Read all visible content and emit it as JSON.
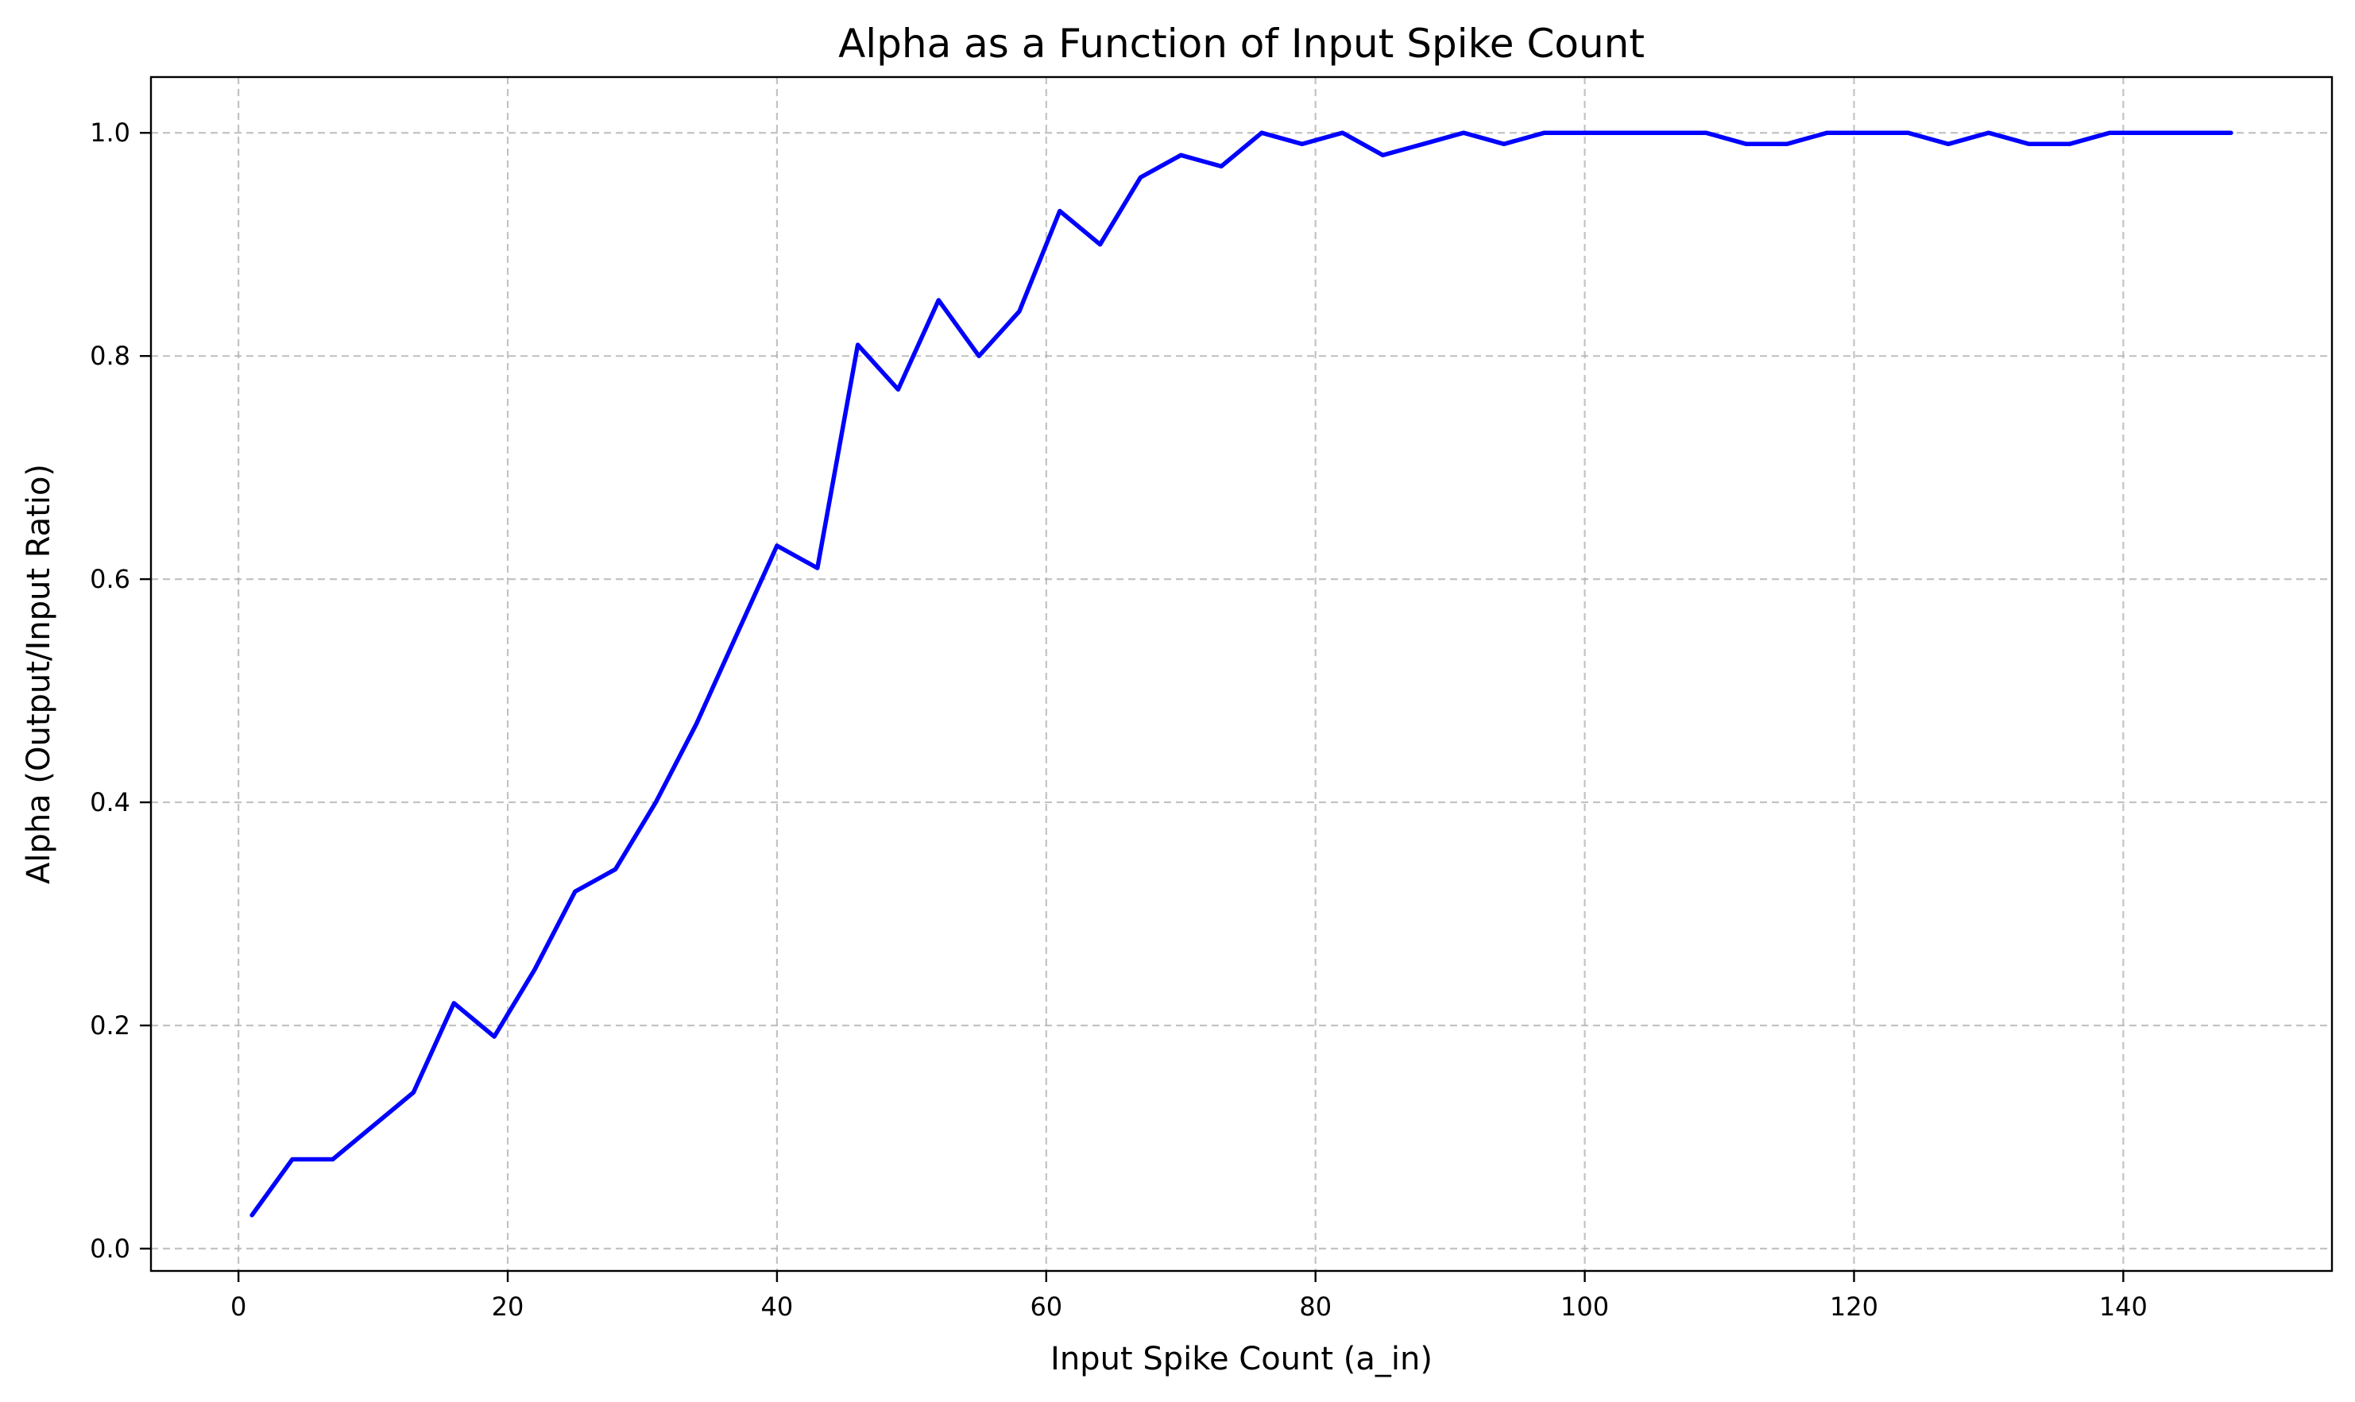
{
  "chart_data": {
    "type": "line",
    "title": "Alpha as a Function of Input Spike Count",
    "xlabel": "Input Spike Count (a_in)",
    "ylabel": "Alpha (Output/Input Ratio)",
    "xlim": [
      -6.5,
      155.5
    ],
    "ylim": [
      -0.02,
      1.05
    ],
    "xticks": [
      0,
      20,
      40,
      60,
      80,
      100,
      120,
      140
    ],
    "yticks": [
      0.0,
      0.2,
      0.4,
      0.6,
      0.8,
      1.0
    ],
    "xtick_labels": [
      "0",
      "20",
      "40",
      "60",
      "80",
      "100",
      "120",
      "140"
    ],
    "ytick_labels": [
      "0.0",
      "0.2",
      "0.4",
      "0.6",
      "0.8",
      "1.0"
    ],
    "grid": true,
    "series": [
      {
        "color": "#0000ff",
        "x": [
          1,
          4,
          7,
          10,
          13,
          16,
          19,
          22,
          25,
          28,
          31,
          34,
          37,
          40,
          43,
          46,
          49,
          52,
          55,
          58,
          61,
          64,
          67,
          70,
          73,
          76,
          79,
          82,
          85,
          88,
          91,
          94,
          97,
          100,
          103,
          106,
          109,
          112,
          115,
          118,
          121,
          124,
          127,
          130,
          133,
          136,
          139,
          142,
          145,
          148
        ],
        "y": [
          0.03,
          0.08,
          0.08,
          0.11,
          0.14,
          0.22,
          0.19,
          0.25,
          0.32,
          0.34,
          0.4,
          0.47,
          0.55,
          0.63,
          0.61,
          0.81,
          0.77,
          0.85,
          0.8,
          0.84,
          0.93,
          0.9,
          0.96,
          0.98,
          0.97,
          1.0,
          0.99,
          1.0,
          0.98,
          0.99,
          1.0,
          0.99,
          1.0,
          1.0,
          1.0,
          1.0,
          1.0,
          0.99,
          0.99,
          1.0,
          1.0,
          1.0,
          0.99,
          1.0,
          0.99,
          0.99,
          1.0,
          1.0,
          1.0,
          1.0
        ]
      }
    ]
  }
}
